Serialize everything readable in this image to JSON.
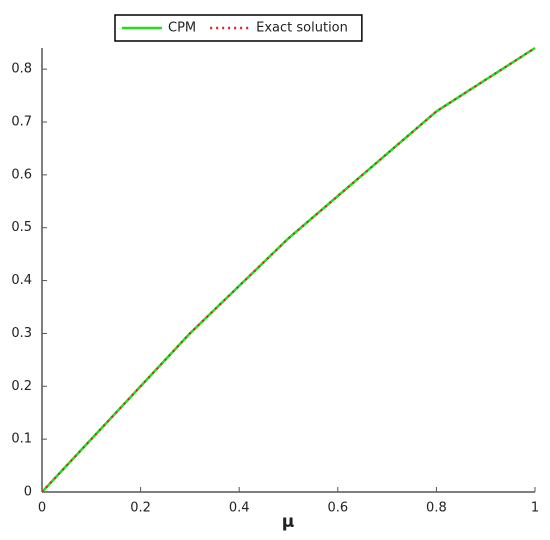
{
  "chart_data": {
    "type": "line",
    "x_label": "μ",
    "x": [
      0,
      0.1,
      0.2,
      0.3,
      0.4,
      0.5,
      0.6,
      0.7,
      0.8,
      0.9,
      1
    ],
    "series": [
      {
        "name": "CPM",
        "color": "#22dd22",
        "style": "solid",
        "values": [
          0,
          0.1,
          0.2,
          0.3,
          0.39,
          0.48,
          0.56,
          0.64,
          0.72,
          0.78,
          0.84
        ]
      },
      {
        "name": "Exact solution",
        "color": "#dd2222",
        "style": "dotted",
        "values": [
          0,
          0.1,
          0.2,
          0.3,
          0.39,
          0.48,
          0.56,
          0.64,
          0.72,
          0.78,
          0.84
        ]
      }
    ],
    "xlim": [
      0,
      1
    ],
    "ylim": [
      0,
      0.84
    ],
    "xticks": [
      0,
      0.2,
      0.4,
      0.6,
      0.8,
      1
    ],
    "yticks": [
      0,
      0.1,
      0.2,
      0.3,
      0.4,
      0.5,
      0.6,
      0.7,
      0.8
    ],
    "grid": false,
    "legend": "top"
  }
}
